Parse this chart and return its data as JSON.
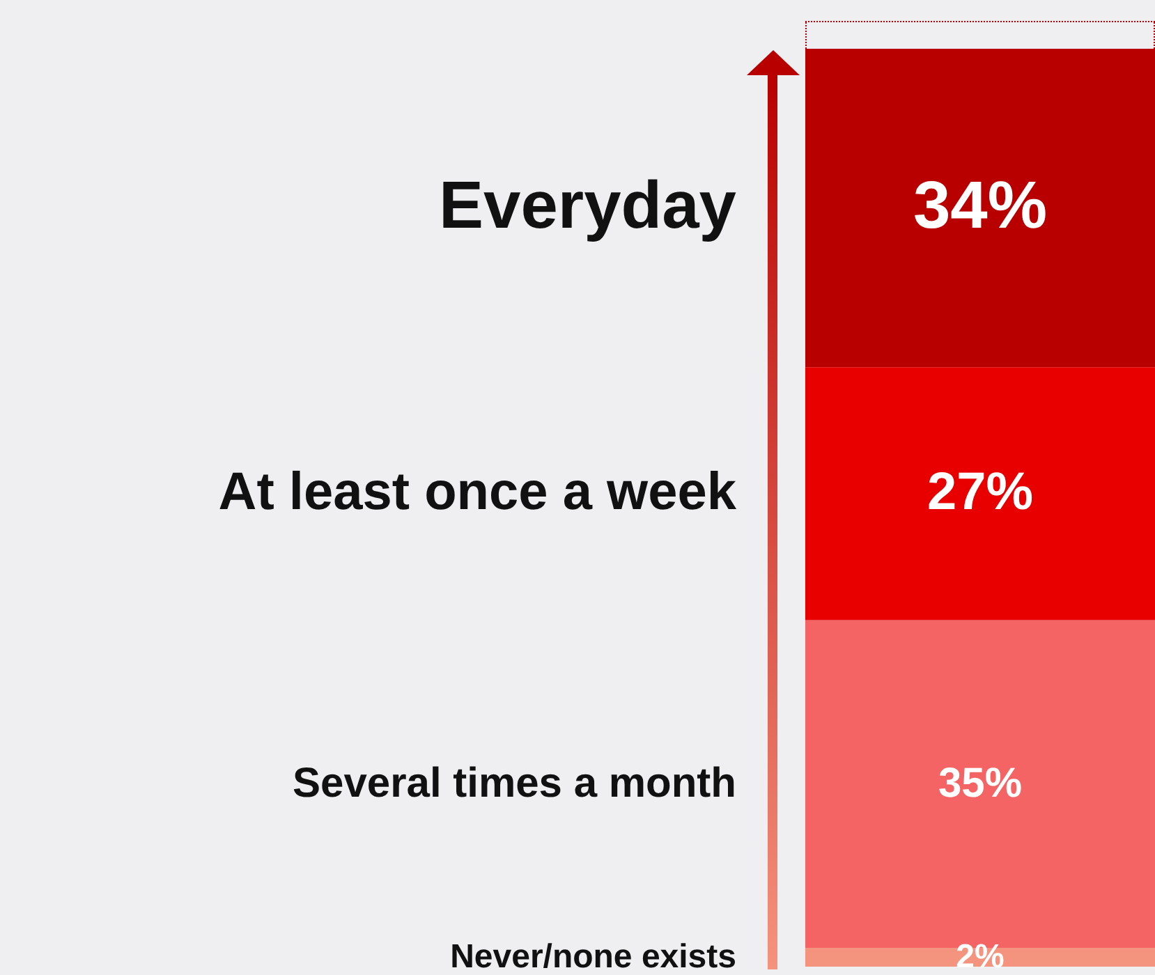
{
  "chart_data": {
    "type": "bar",
    "stacked": true,
    "categories": [
      null
    ],
    "series": [
      {
        "name": "Never/none exists",
        "color": "#f4937e",
        "values": [
          2
        ],
        "value_labels": [
          "2%"
        ]
      },
      {
        "name": "Several times a month",
        "color": "#f56464",
        "values": [
          35
        ],
        "value_labels": [
          "35%"
        ]
      },
      {
        "name": "At least once a week",
        "color": "#e80000",
        "values": [
          27
        ],
        "value_labels": [
          "27%"
        ]
      },
      {
        "name": "Everyday",
        "color": "#b80000",
        "values": [
          34
        ],
        "value_labels": [
          "34%"
        ]
      }
    ]
  }
}
